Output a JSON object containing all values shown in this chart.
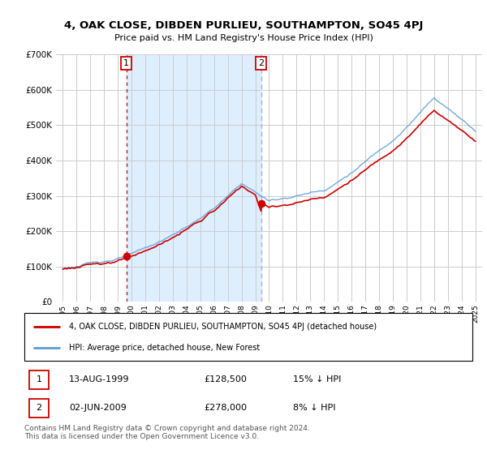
{
  "title": "4, OAK CLOSE, DIBDEN PURLIEU, SOUTHAMPTON, SO45 4PJ",
  "subtitle": "Price paid vs. HM Land Registry's House Price Index (HPI)",
  "legend_line1": "4, OAK CLOSE, DIBDEN PURLIEU, SOUTHAMPTON, SO45 4PJ (detached house)",
  "legend_line2": "HPI: Average price, detached house, New Forest",
  "annotation1_label": "1",
  "annotation1_date": "13-AUG-1999",
  "annotation1_price": "£128,500",
  "annotation1_hpi": "15% ↓ HPI",
  "annotation2_label": "2",
  "annotation2_date": "02-JUN-2009",
  "annotation2_price": "£278,000",
  "annotation2_hpi": "8% ↓ HPI",
  "footnote": "Contains HM Land Registry data © Crown copyright and database right 2024.\nThis data is licensed under the Open Government Licence v3.0.",
  "sale1_x": 1999.617,
  "sale1_y": 128500,
  "sale2_x": 2009.42,
  "sale2_y": 278000,
  "price_color": "#cc0000",
  "hpi_color": "#5b9bd5",
  "shade_color": "#ddeeff",
  "annotation_box_color": "#cc0000",
  "vline2_color": "#aaaacc",
  "ylim": [
    0,
    700000
  ],
  "xlim_start": 1994.5,
  "xlim_end": 2025.5,
  "background_color": "#ffffff",
  "grid_color": "#cccccc"
}
